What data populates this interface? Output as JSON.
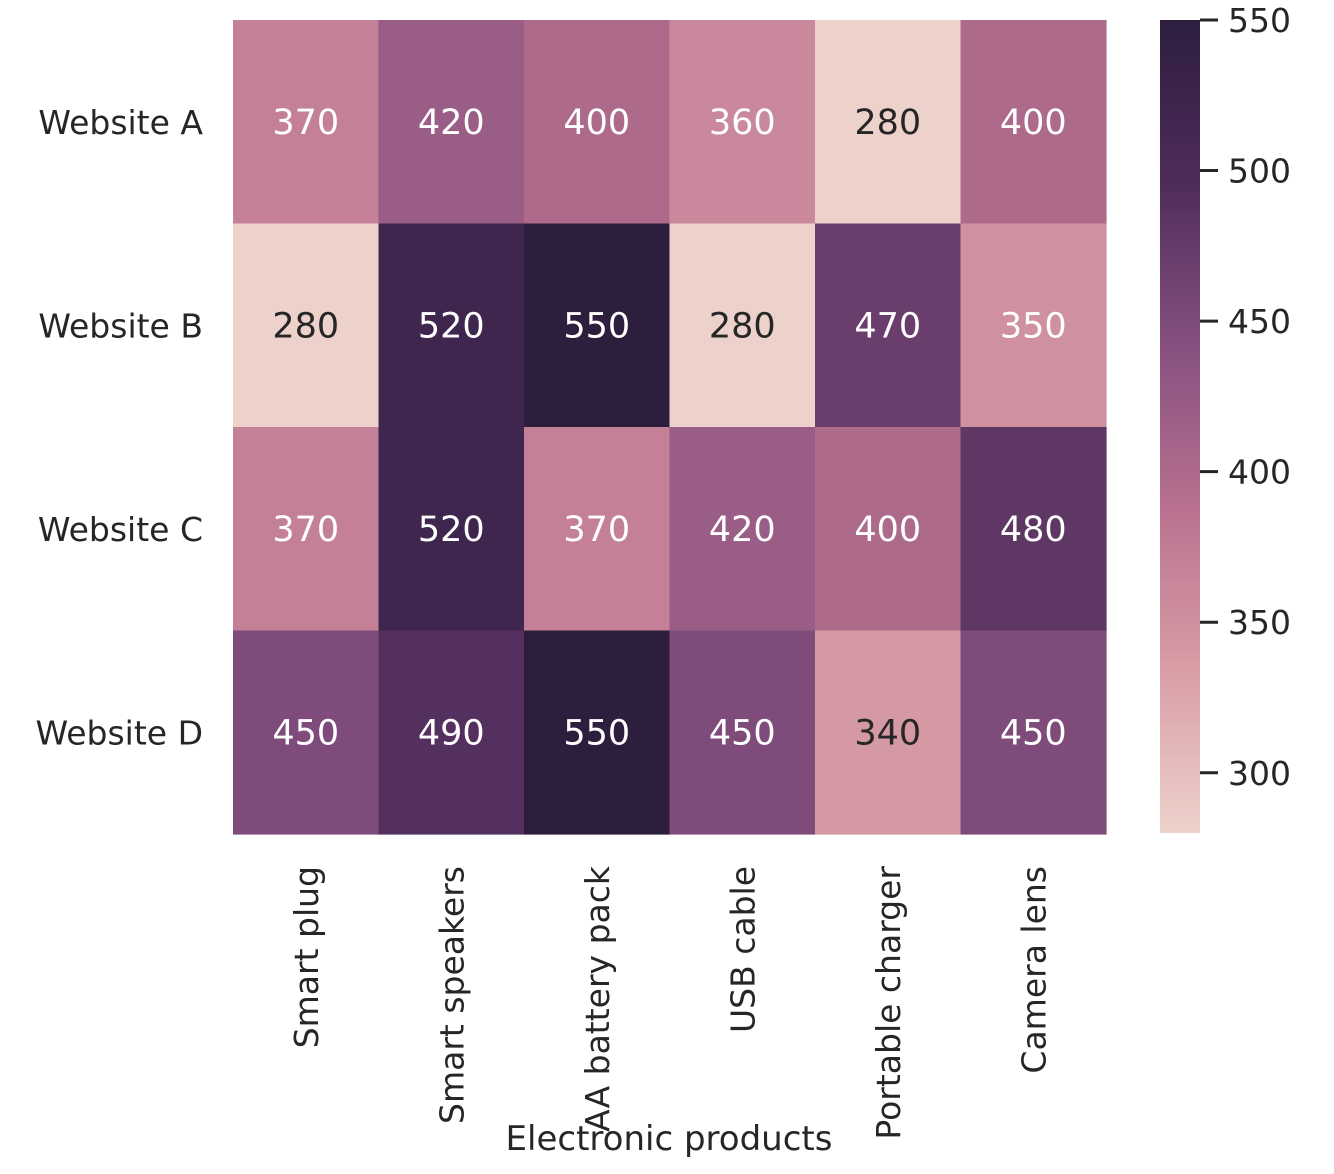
{
  "chart_data": {
    "type": "heatmap",
    "title": "",
    "xlabel": "Electronic products",
    "ylabel": "",
    "rows": [
      "Website A",
      "Website B",
      "Website C",
      "Website D"
    ],
    "columns": [
      "Smart plug",
      "Smart speakers",
      "AA battery pack",
      "USB cable",
      "Portable charger",
      "Camera lens"
    ],
    "values": [
      [
        370,
        420,
        400,
        360,
        280,
        400
      ],
      [
        280,
        520,
        550,
        280,
        470,
        350
      ],
      [
        370,
        520,
        370,
        420,
        400,
        480
      ],
      [
        450,
        490,
        550,
        450,
        340,
        450
      ]
    ],
    "colorbar": {
      "range": [
        280,
        550
      ],
      "ticks": [
        300,
        350,
        400,
        450,
        500,
        550
      ],
      "tick_labels": [
        "300",
        "350",
        "400",
        "450",
        "500",
        "550"
      ],
      "colors": [
        "#edd1cb",
        "#d99ea6",
        "#b8718f",
        "#86507f",
        "#4e2c5a",
        "#2d1e3e"
      ]
    },
    "annotation_colors": {
      "light_cell": "#262626",
      "dark_cell": "#ffffff"
    },
    "grid": false,
    "legend": "colorbar-right"
  }
}
